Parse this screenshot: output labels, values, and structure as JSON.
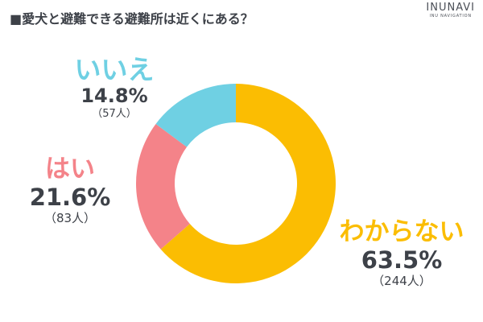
{
  "title": "■愛犬と避難できる避難所は近くにある？",
  "brand": {
    "name": "INUNAVI",
    "sub": "INU NAVIGATION"
  },
  "colors": {
    "wakaranai": "#fbbd02",
    "hai": "#f48389",
    "iie": "#6fd0e3",
    "text": "#3d4148"
  },
  "chart_data": {
    "type": "pie",
    "donut": true,
    "title": "■愛犬と避難できる避難所は近くにある？",
    "slices": [
      {
        "label": "わからない",
        "value": 63.5,
        "value_label": "63.5%",
        "count_label": "（244人）",
        "color": "#fbbd02"
      },
      {
        "label": "はい",
        "value": 21.6,
        "value_label": "21.6%",
        "count_label": "（83人）",
        "color": "#f48389"
      },
      {
        "label": "いいえ",
        "value": 14.8,
        "value_label": "14.8%",
        "count_label": "（57人）",
        "color": "#6fd0e3"
      }
    ]
  }
}
